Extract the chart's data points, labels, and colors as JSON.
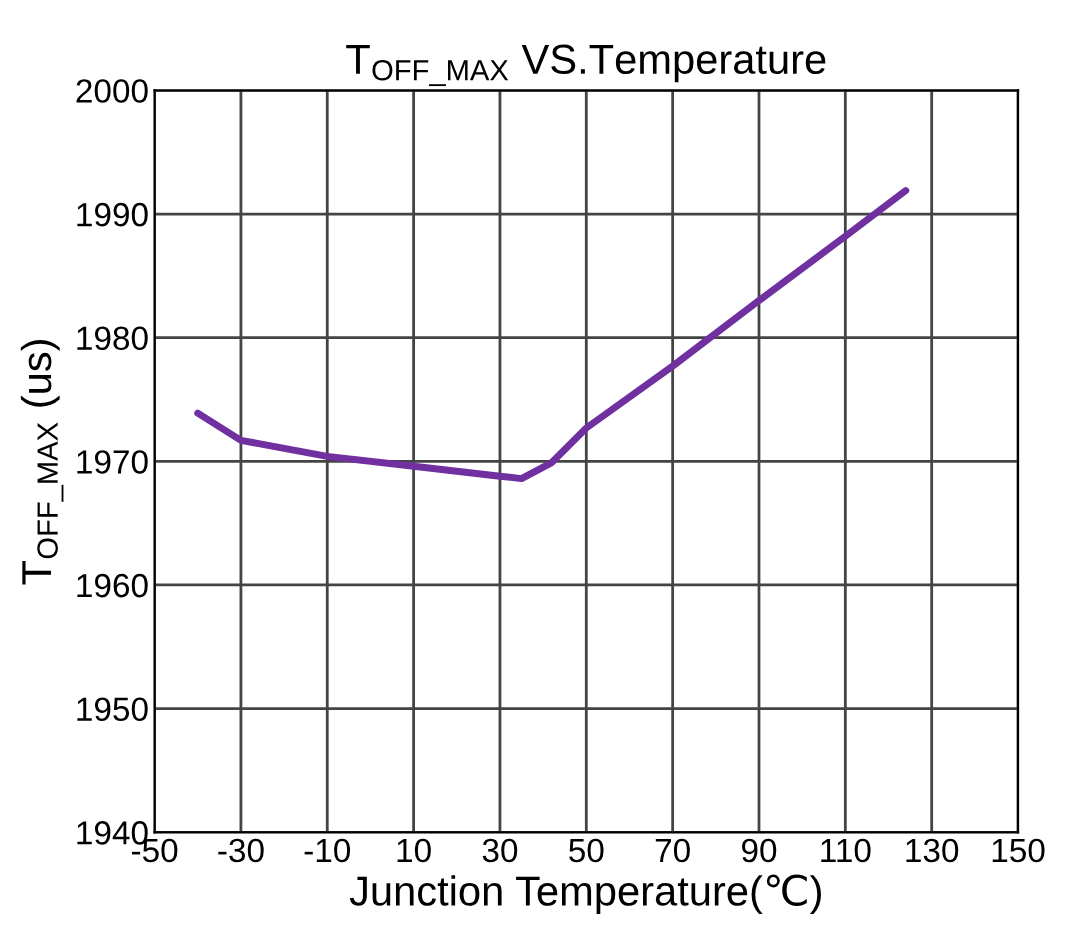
{
  "chart_data": {
    "type": "line",
    "title": "T$_{OFF_MAX}$ VS.Temperature",
    "xlabel": "Junction Temperature(℃)",
    "ylabel": "T$_{OFF_MAX}$ (us)",
    "x": [
      -40,
      -30,
      -10,
      10,
      30,
      35,
      42,
      50,
      70,
      90,
      110,
      124
    ],
    "series": [
      {
        "color": "#7030a0",
        "values": [
          1973.9,
          1971.7,
          1970.4,
          1969.6,
          1968.8,
          1968.6,
          1969.9,
          1972.7,
          1977.7,
          1983.0,
          1988.2,
          1991.9
        ]
      }
    ],
    "xlim": [
      -50,
      150
    ],
    "xticks": [
      -50,
      -30,
      -10,
      10,
      30,
      50,
      70,
      90,
      110,
      130,
      150
    ],
    "ylim": [
      1940,
      2000
    ],
    "yticks": [
      1940,
      1950,
      1960,
      1970,
      1980,
      1990,
      2000
    ],
    "grid": true,
    "legend": false,
    "marker": "none",
    "line_style": "solid"
  }
}
